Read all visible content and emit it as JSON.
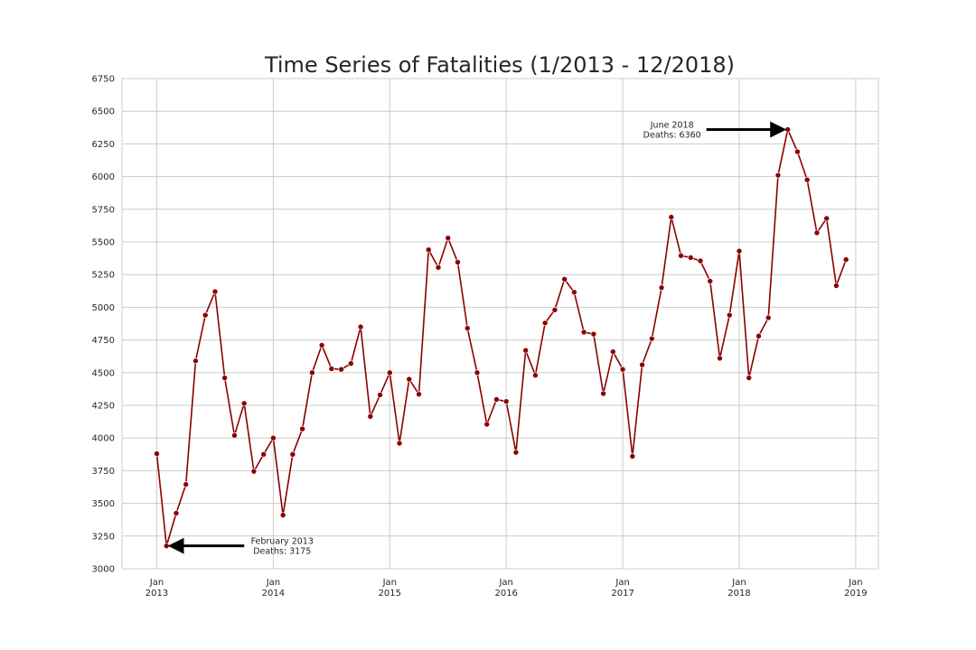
{
  "chart_data": {
    "type": "line",
    "title": "Time Series of Fatalities (1/2013 - 12/2018)",
    "xlabel": "",
    "ylabel": "",
    "start": "2013-01",
    "x_ticks": [
      {
        "month": "Jan",
        "year": "2013"
      },
      {
        "month": "Jan",
        "year": "2014"
      },
      {
        "month": "Jan",
        "year": "2015"
      },
      {
        "month": "Jan",
        "year": "2016"
      },
      {
        "month": "Jan",
        "year": "2017"
      },
      {
        "month": "Jan",
        "year": "2018"
      },
      {
        "month": "Jan",
        "year": "2019"
      }
    ],
    "ylim": [
      3000,
      6750
    ],
    "y_ticks": [
      3000,
      3250,
      3500,
      3750,
      4000,
      4250,
      4500,
      4750,
      5000,
      5250,
      5500,
      5750,
      6000,
      6250,
      6500,
      6750
    ],
    "grid": true,
    "line_color": "#8b0000",
    "series": [
      {
        "values": [
          3880,
          3175,
          3425,
          3645,
          4590,
          4940,
          5120,
          4460,
          4020,
          4265,
          3745,
          3875,
          4000,
          3410,
          3875,
          4070,
          4500,
          4710,
          4530,
          4525,
          4570,
          4850,
          4165,
          4330,
          4500,
          3960,
          4450,
          4335,
          5440,
          5305,
          5530,
          5345,
          4840,
          4500,
          4105,
          4295,
          4280,
          3890,
          4670,
          4480,
          4880,
          4980,
          5215,
          5115,
          4810,
          4795,
          4340,
          4660,
          4525,
          3860,
          4560,
          4760,
          5150,
          5690,
          5395,
          5380,
          5355,
          5200,
          4610,
          4940,
          5430,
          4460,
          4780,
          4920,
          6010,
          6360,
          6190,
          5975,
          5570,
          5680,
          5165,
          5365
        ]
      }
    ],
    "annotations": [
      {
        "line1": "February 2013",
        "line2": "Deaths:  3175",
        "point_index": 1,
        "arrow": "left"
      },
      {
        "line1": "June 2018",
        "line2": "Deaths: 6360",
        "point_index": 65,
        "arrow": "right"
      }
    ]
  }
}
